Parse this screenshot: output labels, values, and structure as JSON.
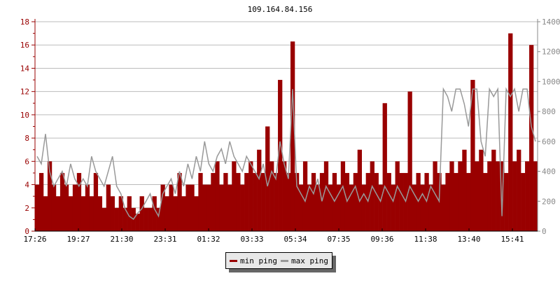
{
  "chart_data": {
    "type": "area",
    "title": "109.164.84.156",
    "x_tick_labels": [
      "17:26",
      "19:27",
      "21:30",
      "23:31",
      "01:32",
      "03:33",
      "05:34",
      "07:35",
      "09:36",
      "11:38",
      "13:40",
      "15:41"
    ],
    "y_left": {
      "ticks": [
        0,
        2,
        4,
        6,
        8,
        10,
        12,
        14,
        16,
        18
      ],
      "range": [
        0,
        18
      ],
      "color": "#990000"
    },
    "y_right": {
      "ticks": [
        0,
        200,
        400,
        600,
        800,
        1000,
        1200,
        1400
      ],
      "range": [
        0,
        1400
      ],
      "color": "#888888"
    },
    "grid": true,
    "legend_position": "bottom",
    "series": [
      {
        "name": "min ping",
        "axis": "left",
        "color": "#990000",
        "values": [
          4,
          5,
          3,
          6,
          4,
          3,
          5,
          4,
          3,
          4,
          5,
          3,
          4,
          3,
          5,
          3,
          2,
          4,
          3,
          2,
          3,
          2,
          3,
          2,
          1.5,
          3,
          2,
          2,
          3,
          2,
          4,
          3,
          4,
          3,
          5,
          3,
          4,
          4,
          3,
          5,
          4,
          4,
          5,
          6,
          4,
          5,
          4,
          6,
          5,
          4,
          5,
          6,
          5,
          7,
          5,
          9,
          6,
          5,
          13,
          6,
          5,
          16.3,
          5,
          4,
          6,
          4,
          5,
          4,
          5,
          6,
          4,
          5,
          4,
          6,
          5,
          4,
          5,
          7,
          4,
          5,
          6,
          5,
          4,
          11,
          5,
          4,
          6,
          5,
          5,
          12,
          4,
          5,
          4,
          5,
          4,
          6,
          5,
          4,
          5,
          6,
          5,
          6,
          7,
          5,
          13,
          6,
          7,
          5,
          6,
          7,
          6,
          6,
          5,
          17,
          6,
          7,
          5,
          6,
          16,
          6
        ]
      },
      {
        "name": "max ping",
        "axis": "right",
        "color": "#999999",
        "values": [
          500,
          450,
          650,
          400,
          300,
          350,
          400,
          300,
          450,
          350,
          300,
          350,
          300,
          500,
          400,
          350,
          300,
          400,
          500,
          300,
          250,
          150,
          100,
          80,
          120,
          150,
          200,
          250,
          150,
          100,
          250,
          300,
          350,
          250,
          400,
          300,
          450,
          350,
          500,
          400,
          600,
          450,
          400,
          500,
          550,
          450,
          600,
          500,
          450,
          400,
          500,
          450,
          400,
          350,
          450,
          300,
          400,
          350,
          600,
          450,
          350,
          950,
          300,
          250,
          200,
          300,
          250,
          350,
          200,
          300,
          250,
          200,
          250,
          300,
          200,
          250,
          300,
          200,
          250,
          200,
          300,
          250,
          200,
          300,
          250,
          200,
          300,
          250,
          200,
          300,
          250,
          200,
          250,
          200,
          300,
          250,
          200,
          950,
          900,
          800,
          950,
          950,
          850,
          700,
          950,
          950,
          600,
          500,
          950,
          900,
          950,
          100,
          950,
          900,
          950,
          800,
          950,
          950,
          700,
          600
        ]
      }
    ]
  },
  "legend": {
    "items": [
      "min ping",
      "max ping"
    ]
  }
}
